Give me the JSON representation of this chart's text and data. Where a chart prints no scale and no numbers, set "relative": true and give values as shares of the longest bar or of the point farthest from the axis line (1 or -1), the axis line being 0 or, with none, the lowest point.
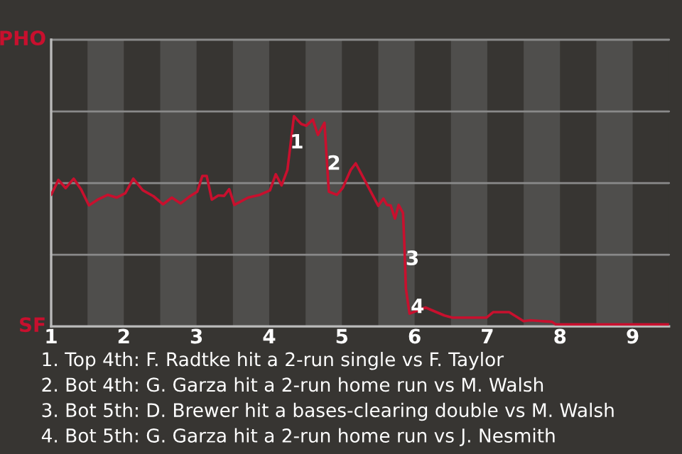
{
  "chart_data": {
    "type": "line",
    "relative": true,
    "x": [
      1,
      1.1,
      1.2,
      1.31,
      1.41,
      1.52,
      1.64,
      1.78,
      1.9,
      2.02,
      2.13,
      2.26,
      2.41,
      2.54,
      2.66,
      2.78,
      2.9,
      3.01,
      3.08,
      3.14,
      3.21,
      3.3,
      3.38,
      3.45,
      3.52,
      3.71,
      3.87,
      4.01,
      4.09,
      4.17,
      4.25,
      4.34,
      4.44,
      4.51,
      4.6,
      4.67,
      4.76,
      4.82,
      4.93,
      5.01,
      5.12,
      5.19,
      5.5,
      5.57,
      5.62,
      5.67,
      5.73,
      5.78,
      5.84,
      5.86,
      5.88,
      5.93,
      6.15,
      6.41,
      6.52,
      6.99,
      7.08,
      7.3,
      7.5,
      7.59,
      7.89,
      7.94,
      9.5
    ],
    "series": [
      {
        "color": "#c8102e",
        "values": [
          0.626,
          0.697,
          0.658,
          0.703,
          0.653,
          0.576,
          0.603,
          0.626,
          0.613,
          0.634,
          0.703,
          0.648,
          0.619,
          0.581,
          0.613,
          0.585,
          0.617,
          0.641,
          0.716,
          0.716,
          0.603,
          0.623,
          0.621,
          0.653,
          0.578,
          0.613,
          0.626,
          0.647,
          0.724,
          0.671,
          0.744,
          1,
          0.963,
          0.955,
          0.984,
          0.911,
          0.969,
          0.641,
          0.626,
          0.658,
          0.744,
          0.776,
          0.574,
          0.608,
          0.578,
          0.576,
          0.513,
          0.578,
          0.54,
          0.383,
          0.18,
          0.061,
          0.09,
          0.052,
          0.042,
          0.042,
          0.068,
          0.068,
          0.025,
          0.029,
          0.022,
          0.01,
          0.01
        ]
      }
    ],
    "xlim": [
      1,
      9.5
    ],
    "xticks": [
      1,
      2,
      3,
      4,
      5,
      6,
      7,
      8,
      9
    ],
    "ref_lines": [
      {
        "axis": "y",
        "value": 0.341,
        "color": "#8a8a8a"
      },
      {
        "axis": "y",
        "value": 0.682,
        "color": "#8a8a8a"
      },
      {
        "axis": "y",
        "value": 1.023,
        "color": "#8a8a8a"
      },
      {
        "axis": "y",
        "value": 1.364,
        "color": "#8a8a8a"
      }
    ],
    "bands": [
      {
        "axis": "x",
        "from": 1.5,
        "to": 2,
        "color": "#4f4e4c"
      },
      {
        "axis": "x",
        "from": 2.5,
        "to": 3,
        "color": "#4f4e4c"
      },
      {
        "axis": "x",
        "from": 3.5,
        "to": 4,
        "color": "#4f4e4c"
      },
      {
        "axis": "x",
        "from": 4.5,
        "to": 5,
        "color": "#4f4e4c"
      },
      {
        "axis": "x",
        "from": 5.5,
        "to": 6,
        "color": "#4f4e4c"
      },
      {
        "axis": "x",
        "from": 6.5,
        "to": 7,
        "color": "#4f4e4c"
      },
      {
        "axis": "x",
        "from": 7.5,
        "to": 8,
        "color": "#4f4e4c"
      },
      {
        "axis": "x",
        "from": 8.5,
        "to": 9,
        "color": "#4f4e4c"
      }
    ],
    "annotations": [
      "PHO",
      "SF",
      {
        "text": "1",
        "x": 4.38,
        "y": 0.873
      },
      {
        "text": "2",
        "x": 4.89,
        "y": 0.771
      },
      {
        "text": "3",
        "x": 5.97,
        "y": 0.318
      },
      {
        "text": "4",
        "x": 6.04,
        "y": 0.09
      },
      "1. Top 4th: F. Radtke hit a 2-run single vs F. Taylor",
      "2. Bot 4th: G. Garza hit a 2-run home run vs M. Walsh",
      "3. Bot 5th: D. Brewer hit a bases-clearing double vs M. Walsh",
      "4. Bot 5th: G. Garza hit a 2-run home run vs J. Nesmith"
    ]
  }
}
